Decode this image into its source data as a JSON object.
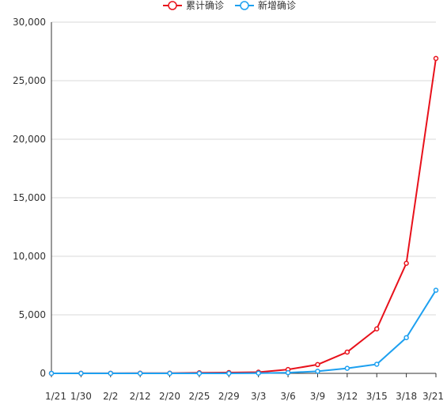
{
  "chart_data": {
    "type": "line",
    "x": [
      "1/21",
      "1/30",
      "2/2",
      "2/12",
      "2/20",
      "2/25",
      "2/29",
      "3/3",
      "3/6",
      "3/9",
      "3/12",
      "3/15",
      "3/18",
      "3/21"
    ],
    "x_tick_labels": [
      "1/21",
      "1/30",
      "2/2",
      "2/12",
      "2/20",
      "2/25",
      "2/29",
      "3/3",
      "3/6",
      "3/9",
      "3/12",
      "3/15",
      "3/18",
      "3/21"
    ],
    "ylim": [
      0,
      30000
    ],
    "y_ticks": [
      0,
      5000,
      10000,
      15000,
      20000,
      25000,
      30000
    ],
    "y_tick_labels": [
      "0",
      "5,000",
      "10,000",
      "15,000",
      "20,000",
      "25,000",
      "30,000"
    ],
    "grid": true,
    "legend_position": "top-center",
    "series": [
      {
        "name": "累计确诊",
        "color": "#e8111b",
        "values": [
          1,
          5,
          11,
          15,
          16,
          50,
          68,
          100,
          330,
          750,
          1820,
          3800,
          9400,
          26900
        ]
      },
      {
        "name": "新增确诊",
        "color": "#1da0f0",
        "values": [
          1,
          0,
          1,
          0,
          0,
          0,
          4,
          20,
          55,
          180,
          430,
          780,
          3050,
          7100
        ]
      }
    ]
  }
}
